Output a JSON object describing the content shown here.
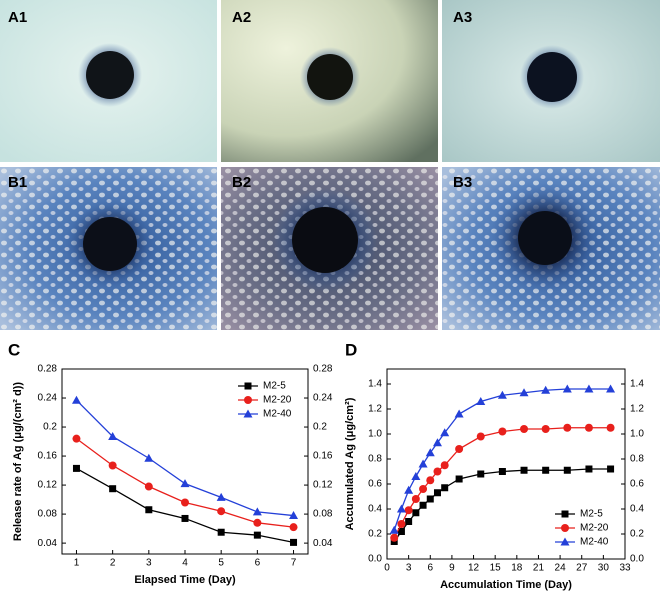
{
  "panels": {
    "labels": [
      "A1",
      "A2",
      "A3",
      "B1",
      "B2",
      "B3"
    ]
  },
  "chart_data": [
    {
      "type": "line",
      "panel_label": "C",
      "x_label": "Elapsed Time  (Day)",
      "y_label": "Release rate of Ag  (μg/(cm² d))",
      "x": [
        1,
        2,
        3,
        4,
        5,
        6,
        7
      ],
      "xlim": [
        0.6,
        7.4
      ],
      "xticks": [
        1,
        2,
        3,
        4,
        5,
        6,
        7
      ],
      "ylim": [
        0.025,
        0.28
      ],
      "yticks": [
        0.04,
        0.08,
        0.12,
        0.16,
        0.2,
        0.24,
        0.28
      ],
      "y2lim": [
        0.025,
        0.28
      ],
      "y2ticks": [
        0.04,
        0.08,
        0.12,
        0.16,
        0.2,
        0.24,
        0.28
      ],
      "legend": "upper right",
      "series": [
        {
          "name": "M2-5",
          "color": "#000000",
          "marker": "square",
          "values": [
            0.143,
            0.115,
            0.086,
            0.074,
            0.055,
            0.051,
            0.041
          ]
        },
        {
          "name": "M2-20",
          "color": "#e8201c",
          "marker": "circle",
          "values": [
            0.184,
            0.147,
            0.118,
            0.096,
            0.084,
            0.068,
            0.062
          ]
        },
        {
          "name": "M2-40",
          "color": "#2440d8",
          "marker": "triangle",
          "values": [
            0.237,
            0.187,
            0.157,
            0.122,
            0.103,
            0.083,
            0.078
          ]
        }
      ]
    },
    {
      "type": "line",
      "panel_label": "D",
      "x_label": "Accumulation Time  (Day)",
      "y_label": "Accumulated Ag  (μg/cm²)",
      "x": [
        1,
        2,
        3,
        4,
        5,
        6,
        7,
        8,
        10,
        13,
        16,
        19,
        22,
        25,
        28,
        31
      ],
      "xlim": [
        0,
        33
      ],
      "xticks": [
        0,
        3,
        6,
        9,
        12,
        15,
        18,
        21,
        24,
        27,
        30,
        33
      ],
      "ylim": [
        0,
        1.52
      ],
      "yticks": [
        {
          "value": 0,
          "label": "0.0"
        },
        0.2,
        0.4,
        0.6,
        0.8,
        {
          "value": 1,
          "label": "1.0"
        },
        1.2,
        1.4
      ],
      "y2lim": [
        0,
        1.52
      ],
      "y2ticks": [
        {
          "value": 0,
          "label": "0.0"
        },
        0.2,
        0.4,
        0.6,
        0.8,
        {
          "value": 1,
          "label": "1.0"
        },
        1.2,
        1.4
      ],
      "legend": "lower right",
      "series": [
        {
          "name": "M2-5",
          "color": "#000000",
          "marker": "square",
          "values": [
            0.14,
            0.22,
            0.3,
            0.37,
            0.43,
            0.48,
            0.53,
            0.57,
            0.64,
            0.68,
            0.7,
            0.71,
            0.71,
            0.71,
            0.72,
            0.72
          ]
        },
        {
          "name": "M2-20",
          "color": "#e8201c",
          "marker": "circle",
          "values": [
            0.17,
            0.28,
            0.39,
            0.48,
            0.56,
            0.63,
            0.7,
            0.75,
            0.88,
            0.98,
            1.02,
            1.04,
            1.04,
            1.05,
            1.05,
            1.05
          ]
        },
        {
          "name": "M2-40",
          "color": "#2440d8",
          "marker": "triangle",
          "values": [
            0.23,
            0.4,
            0.55,
            0.66,
            0.76,
            0.85,
            0.93,
            1.01,
            1.16,
            1.26,
            1.31,
            1.33,
            1.35,
            1.36,
            1.36,
            1.36
          ]
        }
      ]
    }
  ]
}
